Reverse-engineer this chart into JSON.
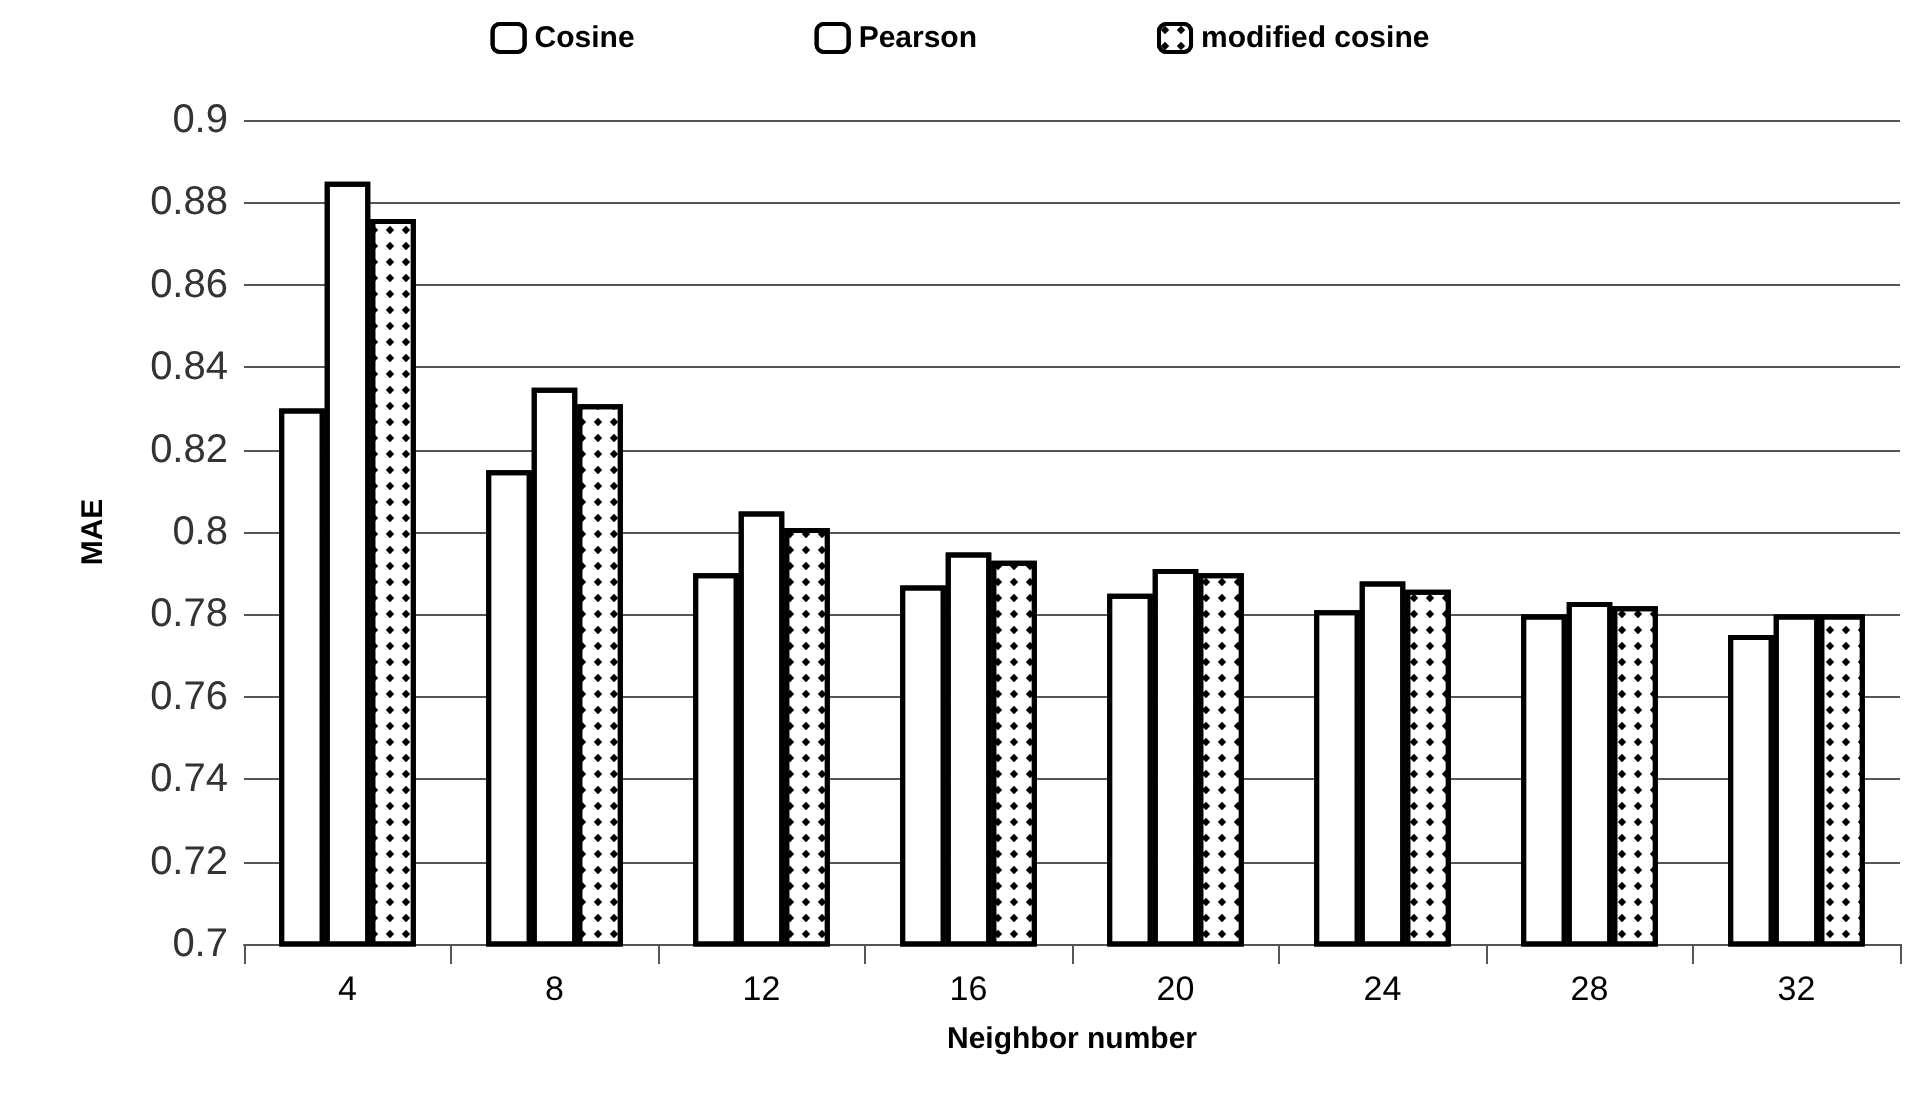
{
  "chart_data": {
    "type": "bar",
    "xlabel": "Neighbor number",
    "ylabel": "MAE",
    "categories": [
      "4",
      "8",
      "12",
      "16",
      "20",
      "24",
      "28",
      "32"
    ],
    "series": [
      {
        "name": "Cosine",
        "color": "#ffffff",
        "values": [
          0.83,
          0.815,
          0.79,
          0.787,
          0.785,
          0.781,
          0.78,
          0.775
        ]
      },
      {
        "name": "Pearson",
        "color": "#ffffff",
        "values": [
          0.885,
          0.835,
          0.805,
          0.795,
          0.791,
          0.788,
          0.783,
          0.78
        ]
      },
      {
        "name": "modified cosine",
        "color": "#ffffff",
        "values": [
          0.876,
          0.831,
          0.801,
          0.793,
          0.79,
          0.786,
          0.782,
          0.78
        ]
      }
    ],
    "ylim": [
      0.7,
      0.9
    ],
    "yticks": [
      0.7,
      0.72,
      0.74,
      0.76,
      0.78,
      0.8,
      0.82,
      0.84,
      0.86,
      0.88,
      0.9
    ],
    "grid": "y",
    "legend": "top"
  }
}
